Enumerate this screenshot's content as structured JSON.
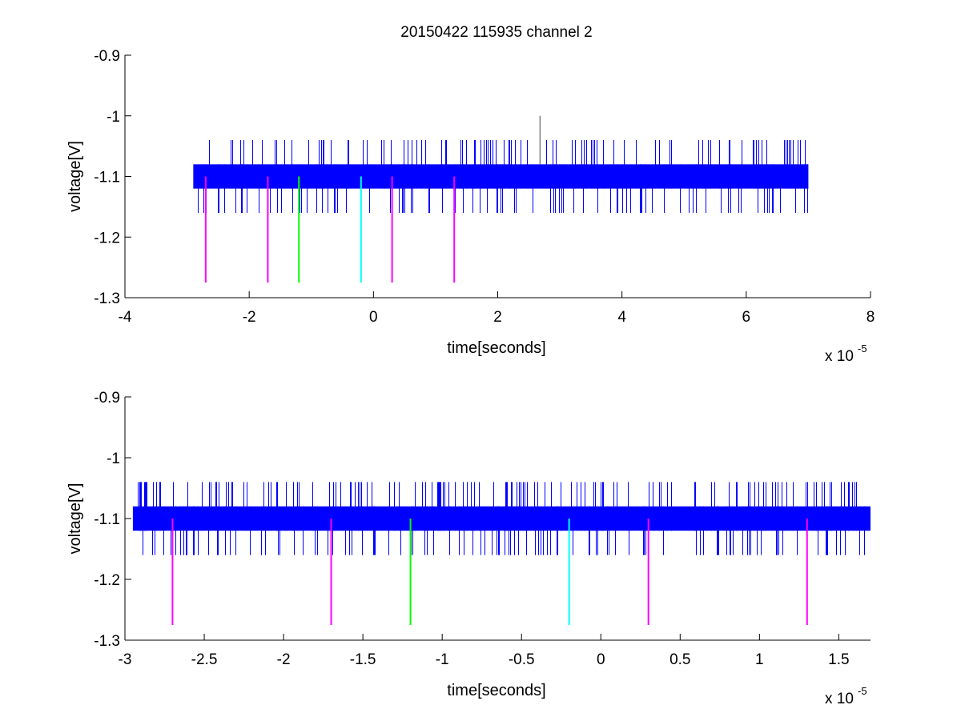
{
  "figure": {
    "title": "20150422 115935 channel 2"
  },
  "chart_data": [
    {
      "type": "line",
      "title": "20150422 115935 channel 2",
      "xlabel": "time[seconds]",
      "ylabel": "voltage[V]",
      "x_exponent_label": "x 10",
      "x_exponent": "-5",
      "xlim": [
        -4,
        8
      ],
      "ylim": [
        -1.3,
        -0.9
      ],
      "xticks": [
        -4,
        -2,
        0,
        2,
        4,
        6,
        8
      ],
      "xtick_labels": [
        "-4",
        "-2",
        "0",
        "2",
        "4",
        "6",
        "8"
      ],
      "yticks": [
        -1.3,
        -1.2,
        -1.1,
        -1.0,
        -0.9
      ],
      "ytick_labels": [
        "-1.3",
        "-1.2",
        "-1.1",
        "-1",
        "-0.9"
      ],
      "grid": false,
      "signal": {
        "color": "#0000ff",
        "x_range": [
          -2.9,
          7.0
        ],
        "band": [
          -1.12,
          -1.08
        ],
        "spike_high": -1.04,
        "spike_low": -1.16,
        "outlier": {
          "x": 2.68,
          "y": -1.0
        }
      },
      "markers": [
        {
          "x": -2.7,
          "y_top": -1.1,
          "y_bottom": -1.275,
          "color": "#ff00ff"
        },
        {
          "x": -1.7,
          "y_top": -1.1,
          "y_bottom": -1.275,
          "color": "#ff00ff"
        },
        {
          "x": -1.2,
          "y_top": -1.1,
          "y_bottom": -1.275,
          "color": "#00ff00"
        },
        {
          "x": -0.2,
          "y_top": -1.1,
          "y_bottom": -1.275,
          "color": "#00ffff"
        },
        {
          "x": 0.3,
          "y_top": -1.1,
          "y_bottom": -1.275,
          "color": "#ff00ff"
        },
        {
          "x": 1.3,
          "y_top": -1.1,
          "y_bottom": -1.275,
          "color": "#ff00ff"
        }
      ]
    },
    {
      "type": "line",
      "title": "",
      "xlabel": "time[seconds]",
      "ylabel": "voltage[V]",
      "x_exponent_label": "x 10",
      "x_exponent": "-5",
      "xlim": [
        -3.0,
        1.7
      ],
      "ylim": [
        -1.3,
        -0.9
      ],
      "xticks": [
        -3,
        -2.5,
        -2,
        -1.5,
        -1,
        -0.5,
        0,
        0.5,
        1,
        1.5
      ],
      "xtick_labels": [
        "-3",
        "-2.5",
        "-2",
        "-1.5",
        "-1",
        "-0.5",
        "0",
        "0.5",
        "1",
        "1.5"
      ],
      "yticks": [
        -1.3,
        -1.2,
        -1.1,
        -1.0,
        -0.9
      ],
      "ytick_labels": [
        "-1.3",
        "-1.2",
        "-1.1",
        "-1",
        "-0.9"
      ],
      "grid": false,
      "signal": {
        "color": "#0000ff",
        "x_range": [
          -2.95,
          1.7
        ],
        "band": [
          -1.12,
          -1.08
        ],
        "spike_high": -1.04,
        "spike_low": -1.16,
        "outlier": null
      },
      "markers": [
        {
          "x": -2.7,
          "y_top": -1.1,
          "y_bottom": -1.275,
          "color": "#ff00ff"
        },
        {
          "x": -1.7,
          "y_top": -1.1,
          "y_bottom": -1.275,
          "color": "#ff00ff"
        },
        {
          "x": -1.2,
          "y_top": -1.1,
          "y_bottom": -1.275,
          "color": "#00ff00"
        },
        {
          "x": -0.2,
          "y_top": -1.1,
          "y_bottom": -1.275,
          "color": "#00ffff"
        },
        {
          "x": 0.3,
          "y_top": -1.1,
          "y_bottom": -1.275,
          "color": "#ff00ff"
        },
        {
          "x": 1.3,
          "y_top": -1.1,
          "y_bottom": -1.275,
          "color": "#ff00ff"
        }
      ]
    }
  ]
}
